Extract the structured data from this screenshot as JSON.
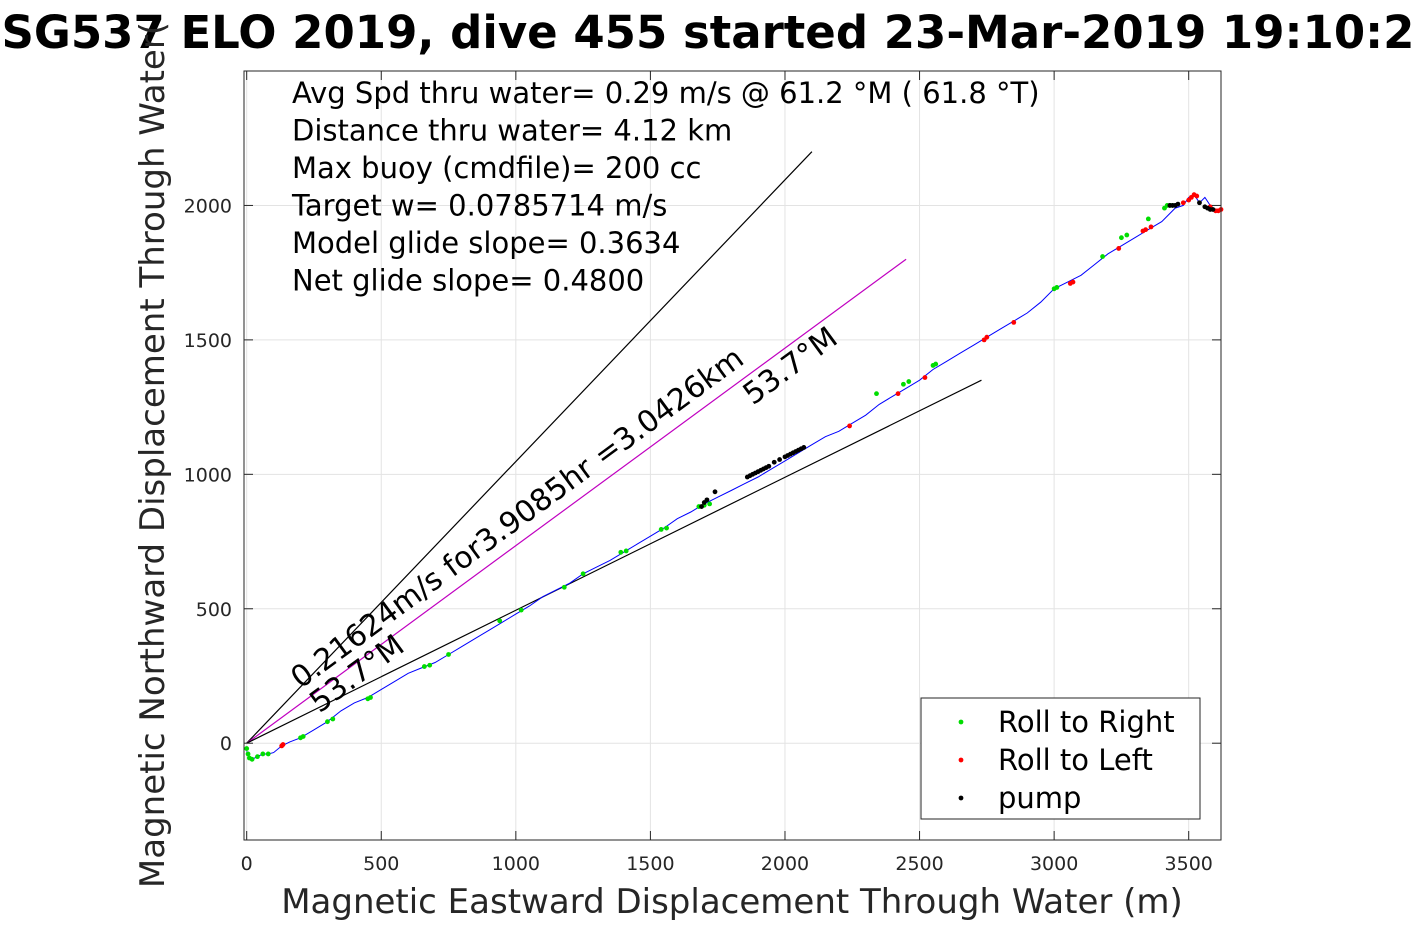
{
  "chart_data": {
    "type": "scatter",
    "title": "SG537 ELO 2019, dive 455 started 23-Mar-2019 19:10:2",
    "xlabel": "Magnetic Eastward Displacement Through Water (m)",
    "ylabel": "Magnetic Northward Displacement Through Water(",
    "xlim": [
      -10,
      3620
    ],
    "ylim": [
      -360,
      2500
    ],
    "xticks": [
      0,
      500,
      1000,
      1500,
      2000,
      2500,
      3000,
      3500
    ],
    "yticks": [
      0,
      500,
      1000,
      1500,
      2000
    ],
    "grid": true,
    "info_text": [
      "Avg Spd thru water=  0.29 m/s @  61.2 °M ( 61.8 °T)",
      "Distance thru water=  4.12 km",
      "Max buoy (cmdfile)= 200 cc",
      "Target w= 0.0785714 m/s",
      "Model glide slope= 0.3634",
      "Net glide slope= 0.4800"
    ],
    "reference_lines": [
      {
        "x": [
          0,
          2100
        ],
        "y": [
          0,
          2200
        ],
        "color": "#000000"
      },
      {
        "x": [
          0,
          2450
        ],
        "y": [
          0,
          1800
        ],
        "color": "#c000c0"
      },
      {
        "x": [
          0,
          2730
        ],
        "y": [
          0,
          1350
        ],
        "color": "#000000"
      }
    ],
    "annotations": [
      {
        "text": "0.21624m/s for3.9085hr =3.0426km",
        "x": 200,
        "y": 200,
        "angle": 36.3
      },
      {
        "text": "53.7°M",
        "x": 270,
        "y": 110,
        "angle": 36.3
      },
      {
        "text": "53.7°M",
        "x": 1880,
        "y": 1255,
        "angle": 36.3
      }
    ],
    "track": {
      "name": "",
      "color": "#0000ff",
      "x": [
        0,
        10,
        20,
        40,
        60,
        80,
        100,
        130,
        160,
        200,
        250,
        300,
        350,
        400,
        450,
        500,
        550,
        600,
        650,
        700,
        750,
        800,
        850,
        900,
        950,
        1000,
        1050,
        1100,
        1150,
        1200,
        1250,
        1300,
        1350,
        1400,
        1450,
        1500,
        1550,
        1600,
        1650,
        1700,
        1750,
        1800,
        1850,
        1900,
        1950,
        2000,
        2050,
        2100,
        2150,
        2200,
        2250,
        2300,
        2350,
        2400,
        2450,
        2500,
        2550,
        2600,
        2650,
        2700,
        2750,
        2800,
        2850,
        2900,
        2950,
        3000,
        3050,
        3100,
        3150,
        3200,
        3250,
        3300,
        3350,
        3400,
        3450,
        3480,
        3500,
        3520,
        3540,
        3560,
        3580,
        3600,
        3620
      ],
      "y": [
        -30,
        -55,
        -60,
        -50,
        -40,
        -40,
        -35,
        -10,
        5,
        20,
        50,
        80,
        120,
        150,
        170,
        200,
        230,
        260,
        280,
        300,
        330,
        360,
        390,
        420,
        450,
        480,
        510,
        545,
        570,
        595,
        630,
        655,
        680,
        710,
        740,
        770,
        800,
        835,
        860,
        890,
        915,
        940,
        965,
        990,
        1020,
        1050,
        1080,
        1110,
        1140,
        1160,
        1190,
        1220,
        1260,
        1290,
        1320,
        1350,
        1390,
        1420,
        1450,
        1480,
        1510,
        1540,
        1570,
        1600,
        1640,
        1690,
        1715,
        1740,
        1780,
        1820,
        1850,
        1880,
        1910,
        1940,
        1990,
        2000,
        2030,
        2040,
        2010,
        2030,
        2000,
        1980,
        1985
      ]
    },
    "series": [
      {
        "name": "Roll to Right",
        "color": "#00dd00",
        "x": [
          0,
          5,
          10,
          20,
          40,
          60,
          80,
          200,
          210,
          300,
          320,
          450,
          460,
          660,
          680,
          750,
          940,
          1020,
          1180,
          1250,
          1390,
          1410,
          1540,
          1560,
          1680,
          1700,
          1720,
          2340,
          2440,
          2460,
          2550,
          2560,
          3000,
          3010,
          3180,
          3250,
          3270,
          3350,
          3410,
          3420,
          3430,
          3440
        ],
        "y": [
          -20,
          -40,
          -55,
          -60,
          -50,
          -40,
          -40,
          20,
          25,
          80,
          90,
          165,
          170,
          285,
          290,
          330,
          455,
          495,
          580,
          630,
          710,
          715,
          795,
          800,
          880,
          885,
          890,
          1300,
          1335,
          1345,
          1405,
          1410,
          1690,
          1695,
          1810,
          1880,
          1890,
          1950,
          1990,
          2000,
          2000,
          2000
        ]
      },
      {
        "name": "Roll to Left",
        "color": "#ff0000",
        "x": [
          130,
          135,
          2240,
          2420,
          2520,
          2740,
          2750,
          2850,
          3060,
          3070,
          3240,
          3330,
          3340,
          3360,
          3480,
          3500,
          3510,
          3520,
          3530,
          3580,
          3600,
          3610,
          3620
        ],
        "y": [
          -10,
          -5,
          1180,
          1300,
          1360,
          1500,
          1510,
          1565,
          1710,
          1715,
          1840,
          1905,
          1910,
          1920,
          2010,
          2020,
          2030,
          2040,
          2035,
          1995,
          1980,
          1980,
          1985
        ]
      },
      {
        "name": "pump",
        "color": "#000000",
        "x": [
          1690,
          1700,
          1710,
          1740,
          1860,
          1870,
          1880,
          1890,
          1900,
          1910,
          1920,
          1930,
          1940,
          1960,
          1980,
          2000,
          2010,
          2020,
          2030,
          2040,
          2050,
          2060,
          2070,
          3430,
          3440,
          3450,
          3460,
          3540,
          3560,
          3570,
          3580,
          3590
        ],
        "y": [
          880,
          895,
          905,
          935,
          990,
          995,
          1000,
          1005,
          1010,
          1015,
          1020,
          1025,
          1030,
          1045,
          1055,
          1065,
          1070,
          1075,
          1080,
          1085,
          1090,
          1095,
          1100,
          2000,
          2000,
          2000,
          2005,
          2010,
          1995,
          1990,
          1985,
          1985
        ]
      }
    ],
    "legend": {
      "placement": "bottom-right",
      "entries": [
        "Roll to Right",
        "Roll to Left",
        "pump"
      ]
    }
  }
}
